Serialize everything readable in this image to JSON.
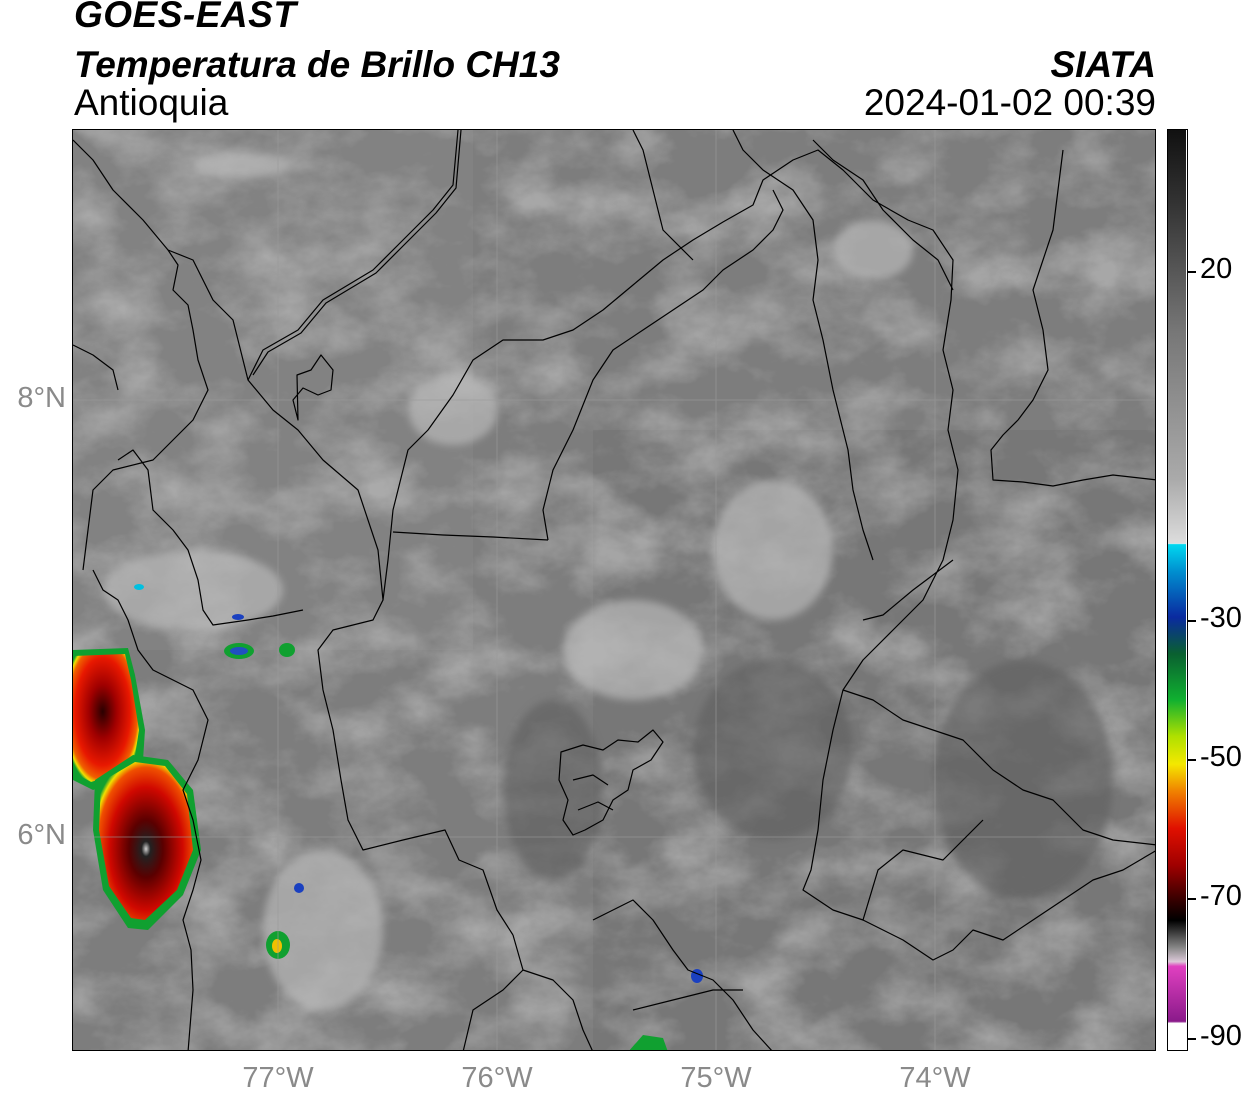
{
  "title": {
    "satellite": "GOES-EAST",
    "product": "Temperatura de Brillo CH13",
    "region": "Antioquia",
    "agency": "SIATA",
    "datetime": "2024-01-02 00:39"
  },
  "map": {
    "lat_labels": [
      "8°N",
      "6°N"
    ],
    "lon_labels": [
      "77°W",
      "76°W",
      "75°W",
      "74°W"
    ]
  },
  "colorbar": {
    "labels": [
      "20",
      "-30",
      "-50",
      "-70",
      "-90"
    ],
    "colors": {
      "warm_gray_top": "#111111",
      "gray_mid": "#9a9a9a",
      "white": "#f4f4f4",
      "cyan": "#00d8f0",
      "blue": "#0a2aa0",
      "green": "#10b030",
      "yellow": "#f4e800",
      "orange": "#f08000",
      "red": "#d00000",
      "dark_red": "#400000",
      "magenta": "#e040c0",
      "purple": "#8a1a8a"
    }
  }
}
